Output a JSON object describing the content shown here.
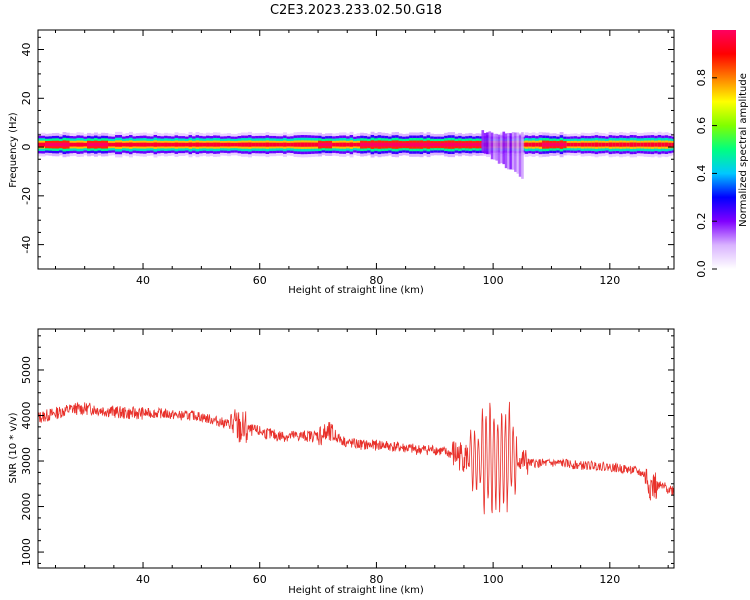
{
  "title": "C2E3.2023.233.02.50.G18",
  "chart_data": [
    {
      "type": "heatmap",
      "xlabel": "Height of straight line (km)",
      "ylabel": "Frequency (Hz)",
      "xlim": [
        22,
        131
      ],
      "ylim": [
        -50,
        48
      ],
      "xticks": [
        40,
        60,
        80,
        100,
        120
      ],
      "yticks": [
        40,
        20,
        0,
        -20,
        -40
      ],
      "colorbar": {
        "label": "Normalized spectral amplitude",
        "range": [
          0,
          1
        ],
        "ticks": [
          0.0,
          0.2,
          0.4,
          0.6,
          0.8
        ],
        "tick_labels": [
          "0.0",
          "0.2",
          "0.4",
          "0.6",
          "0.8"
        ],
        "colormap": [
          "#ffffff",
          "#d9b3ff",
          "#8000ff",
          "#0000ff",
          "#00c8ff",
          "#00ff80",
          "#80ff00",
          "#ffff00",
          "#ff8000",
          "#ff0000",
          "#ff0060"
        ]
      },
      "band": {
        "center_hz": 1,
        "profile": [
          [
            0.8,
            0.95
          ],
          [
            1.6,
            0.75
          ],
          [
            2.6,
            0.45
          ],
          [
            3.6,
            0.22
          ],
          [
            4.8,
            0.06
          ]
        ],
        "hot_spans": [
          [
            23,
            27
          ],
          [
            30,
            34
          ],
          [
            70,
            72
          ],
          [
            77,
            98
          ],
          [
            108,
            112
          ]
        ],
        "disturbance": {
          "x": [
            98,
            105
          ],
          "y_min": -12
        }
      }
    },
    {
      "type": "line",
      "xlabel": "Height of straight line (km)",
      "ylabel": "SNR (10 * v/v)",
      "xlim": [
        22,
        131
      ],
      "ylim": [
        650,
        5900
      ],
      "xticks": [
        40,
        60,
        80,
        100,
        120
      ],
      "yticks": [
        1000,
        2000,
        3000,
        4000,
        5000
      ],
      "color": "#e8302a",
      "x": [
        22,
        25,
        28,
        31,
        34,
        37,
        40,
        43,
        46,
        49,
        52,
        55,
        57,
        60,
        63,
        66,
        69,
        72,
        75,
        78,
        81,
        84,
        87,
        90,
        93,
        95,
        97,
        99,
        100,
        101,
        102,
        103,
        104,
        106,
        109,
        112,
        115,
        118,
        121,
        124,
        126,
        127,
        128,
        130,
        131
      ],
      "y": [
        3950,
        4050,
        4150,
        4150,
        4100,
        4050,
        4050,
        4050,
        4000,
        4000,
        3900,
        3800,
        3700,
        3650,
        3550,
        3550,
        3550,
        3600,
        3400,
        3350,
        3350,
        3300,
        3250,
        3250,
        3150,
        3100,
        3000,
        3000,
        3100,
        3000,
        3050,
        3100,
        3050,
        2950,
        2950,
        2950,
        2900,
        2900,
        2850,
        2800,
        2700,
        2450,
        2450,
        2400,
        2350
      ],
      "noise": [
        [
          22,
          40,
          140
        ],
        [
          40,
          55,
          110
        ],
        [
          55,
          58,
          420
        ],
        [
          58,
          70,
          130
        ],
        [
          70,
          73,
          260
        ],
        [
          73,
          93,
          120
        ],
        [
          93,
          96,
          350
        ],
        [
          96,
          98,
          700
        ],
        [
          98,
          103,
          1400
        ],
        [
          103,
          104,
          900
        ],
        [
          104,
          106,
          300
        ],
        [
          106,
          126,
          100
        ],
        [
          126,
          128,
          350
        ],
        [
          128,
          131,
          120
        ]
      ]
    }
  ]
}
